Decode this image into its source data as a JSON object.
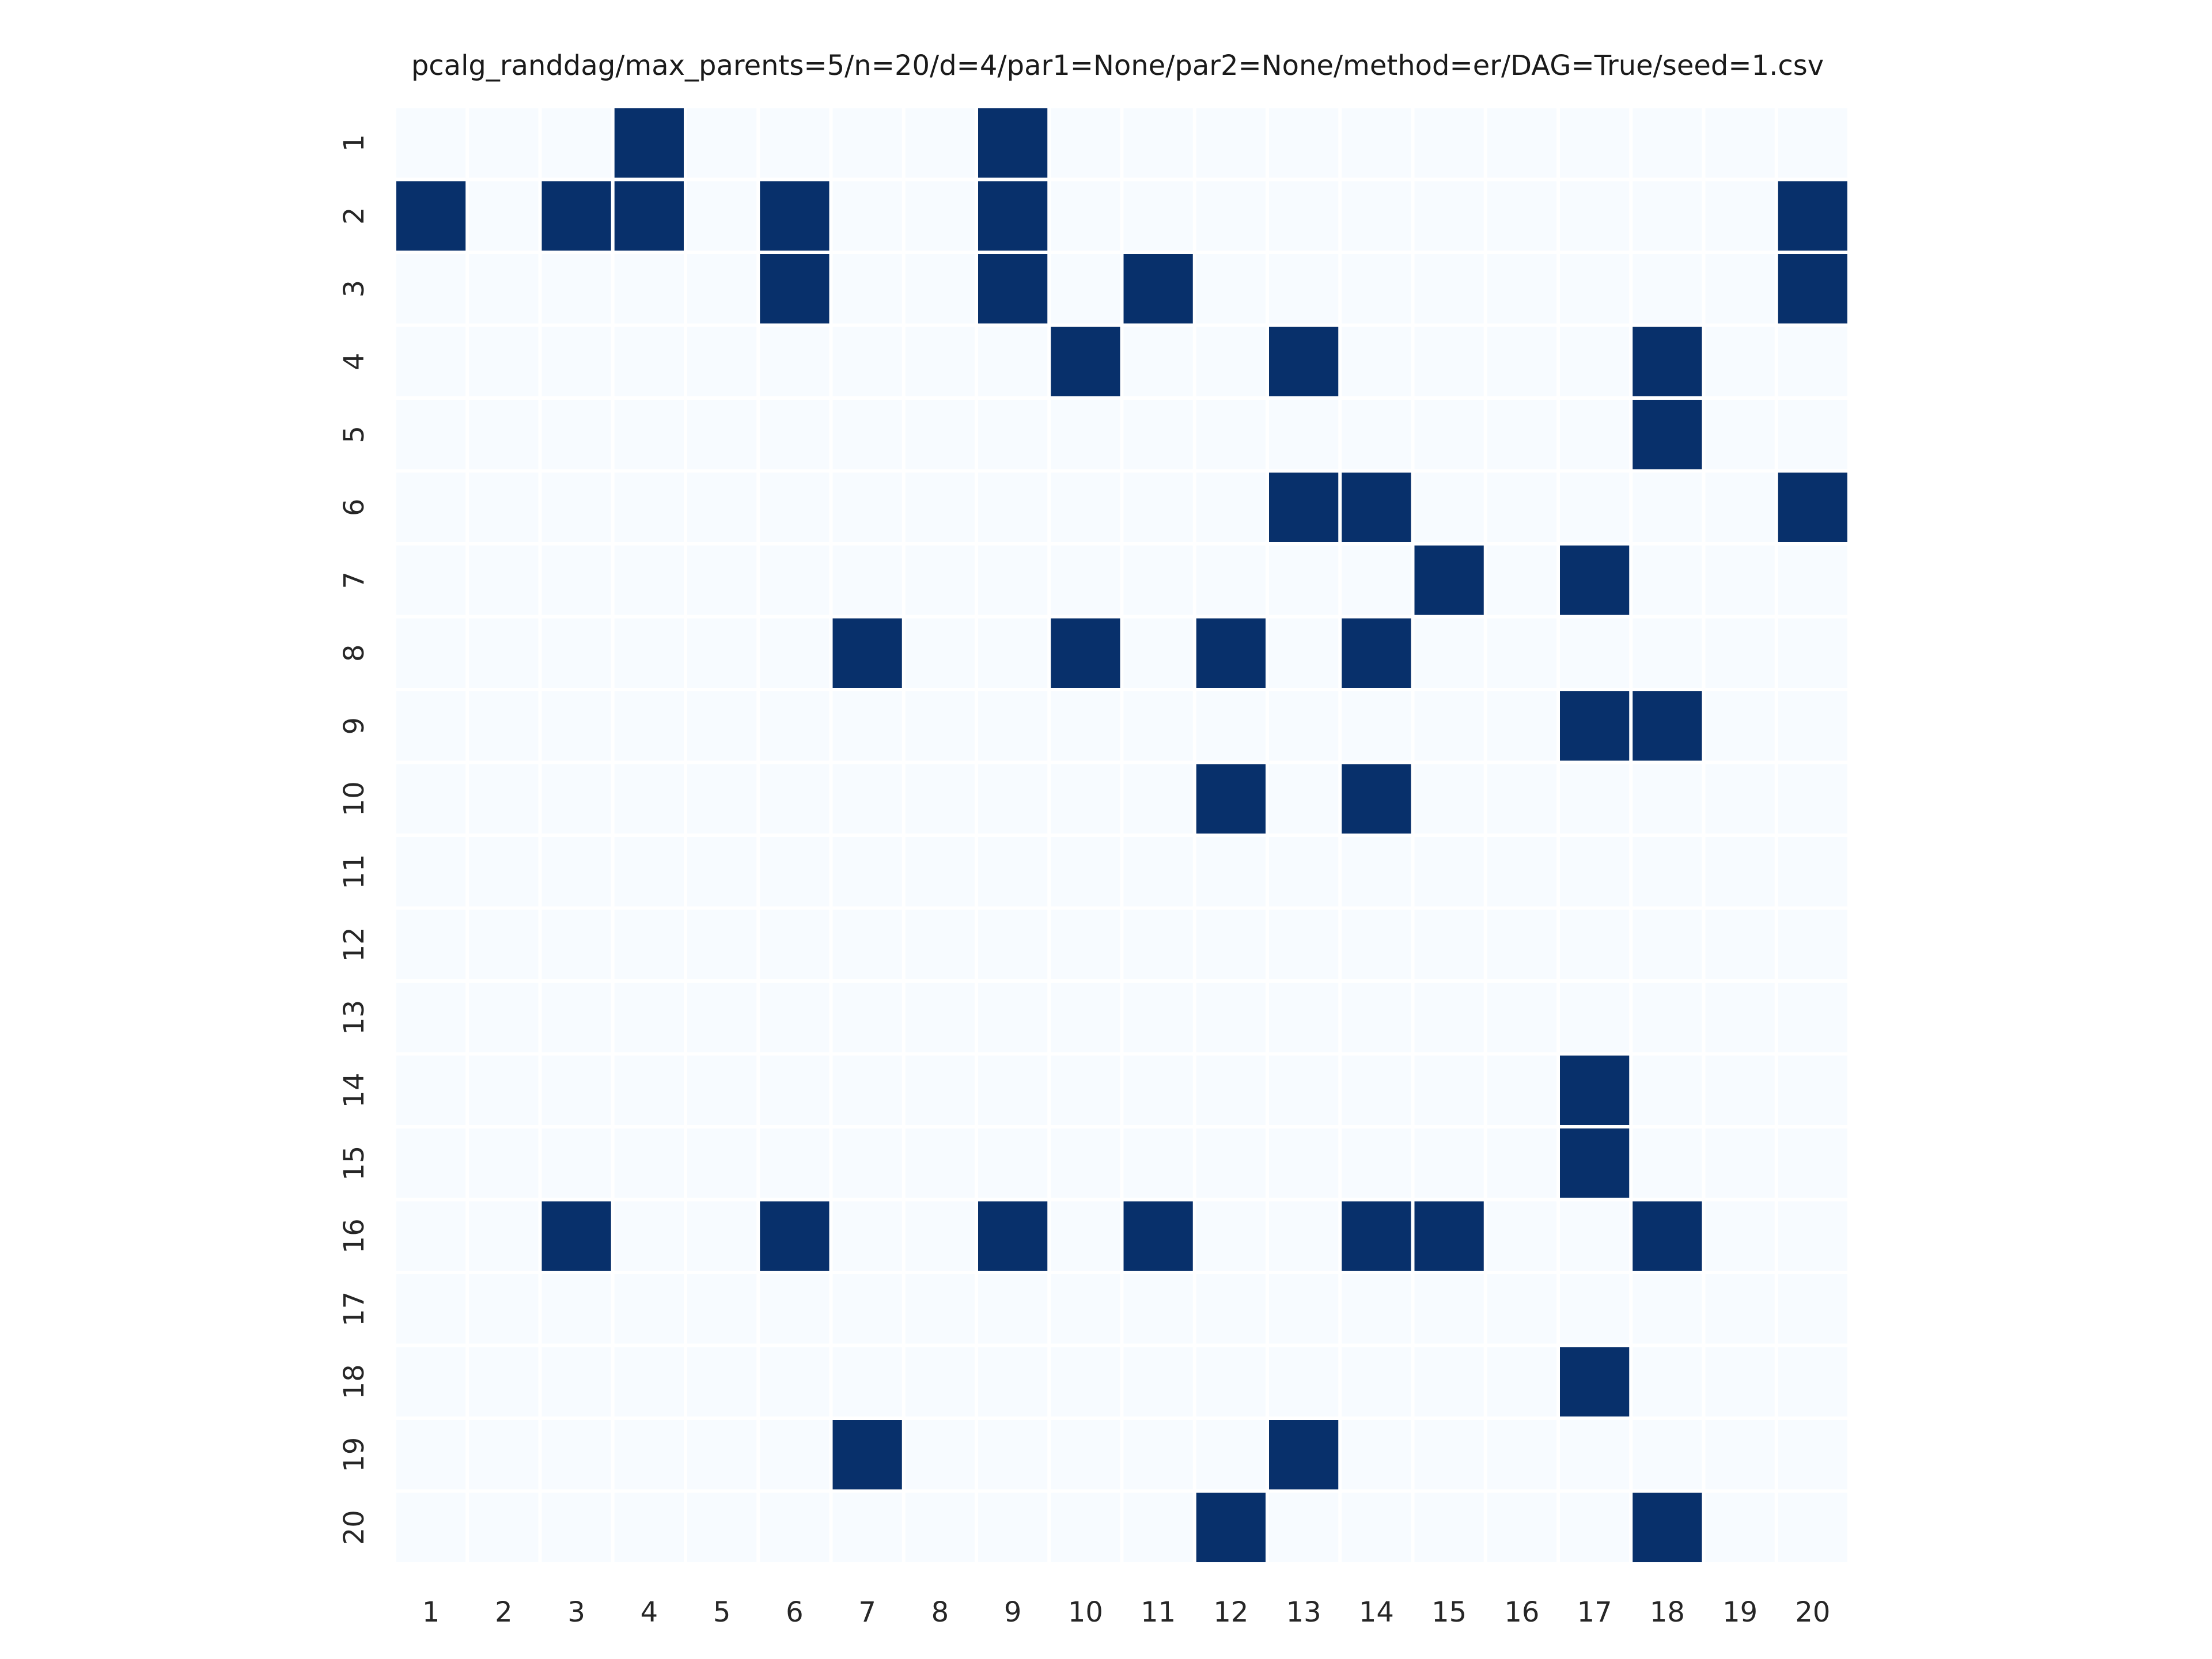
{
  "chart_data": {
    "type": "heatmap",
    "title": "pcalg_randdag/max_parents=5/n=20/d=4/par1=None/par2=None/method=er/DAG=True/seed=1.csv",
    "xlabel": "",
    "ylabel": "",
    "x_tick_labels": [
      "1",
      "2",
      "3",
      "4",
      "5",
      "6",
      "7",
      "8",
      "9",
      "10",
      "11",
      "12",
      "13",
      "14",
      "15",
      "16",
      "17",
      "18",
      "19",
      "20"
    ],
    "y_tick_labels": [
      "1",
      "2",
      "3",
      "4",
      "5",
      "6",
      "7",
      "8",
      "9",
      "10",
      "11",
      "12",
      "13",
      "14",
      "15",
      "16",
      "17",
      "18",
      "19",
      "20"
    ],
    "value_range": [
      0,
      1
    ],
    "colors": {
      "zero": "#f7fbff",
      "one": "#08306b",
      "grid": "#ffffff"
    },
    "grid": true,
    "colorbar": false,
    "matrix": [
      [
        0,
        0,
        0,
        1,
        0,
        0,
        0,
        0,
        1,
        0,
        0,
        0,
        0,
        0,
        0,
        0,
        0,
        0,
        0,
        0
      ],
      [
        1,
        0,
        1,
        1,
        0,
        1,
        0,
        0,
        1,
        0,
        0,
        0,
        0,
        0,
        0,
        0,
        0,
        0,
        0,
        1
      ],
      [
        0,
        0,
        0,
        0,
        0,
        1,
        0,
        0,
        1,
        0,
        1,
        0,
        0,
        0,
        0,
        0,
        0,
        0,
        0,
        1
      ],
      [
        0,
        0,
        0,
        0,
        0,
        0,
        0,
        0,
        0,
        1,
        0,
        0,
        1,
        0,
        0,
        0,
        0,
        1,
        0,
        0
      ],
      [
        0,
        0,
        0,
        0,
        0,
        0,
        0,
        0,
        0,
        0,
        0,
        0,
        0,
        0,
        0,
        0,
        0,
        1,
        0,
        0
      ],
      [
        0,
        0,
        0,
        0,
        0,
        0,
        0,
        0,
        0,
        0,
        0,
        0,
        1,
        1,
        0,
        0,
        0,
        0,
        0,
        1
      ],
      [
        0,
        0,
        0,
        0,
        0,
        0,
        0,
        0,
        0,
        0,
        0,
        0,
        0,
        0,
        1,
        0,
        1,
        0,
        0,
        0
      ],
      [
        0,
        0,
        0,
        0,
        0,
        0,
        1,
        0,
        0,
        1,
        0,
        1,
        0,
        1,
        0,
        0,
        0,
        0,
        0,
        0
      ],
      [
        0,
        0,
        0,
        0,
        0,
        0,
        0,
        0,
        0,
        0,
        0,
        0,
        0,
        0,
        0,
        0,
        1,
        1,
        0,
        0
      ],
      [
        0,
        0,
        0,
        0,
        0,
        0,
        0,
        0,
        0,
        0,
        0,
        1,
        0,
        1,
        0,
        0,
        0,
        0,
        0,
        0
      ],
      [
        0,
        0,
        0,
        0,
        0,
        0,
        0,
        0,
        0,
        0,
        0,
        0,
        0,
        0,
        0,
        0,
        0,
        0,
        0,
        0
      ],
      [
        0,
        0,
        0,
        0,
        0,
        0,
        0,
        0,
        0,
        0,
        0,
        0,
        0,
        0,
        0,
        0,
        0,
        0,
        0,
        0
      ],
      [
        0,
        0,
        0,
        0,
        0,
        0,
        0,
        0,
        0,
        0,
        0,
        0,
        0,
        0,
        0,
        0,
        0,
        0,
        0,
        0
      ],
      [
        0,
        0,
        0,
        0,
        0,
        0,
        0,
        0,
        0,
        0,
        0,
        0,
        0,
        0,
        0,
        0,
        1,
        0,
        0,
        0
      ],
      [
        0,
        0,
        0,
        0,
        0,
        0,
        0,
        0,
        0,
        0,
        0,
        0,
        0,
        0,
        0,
        0,
        1,
        0,
        0,
        0
      ],
      [
        0,
        0,
        1,
        0,
        0,
        1,
        0,
        0,
        1,
        0,
        1,
        0,
        0,
        1,
        1,
        0,
        0,
        1,
        0,
        0
      ],
      [
        0,
        0,
        0,
        0,
        0,
        0,
        0,
        0,
        0,
        0,
        0,
        0,
        0,
        0,
        0,
        0,
        0,
        0,
        0,
        0
      ],
      [
        0,
        0,
        0,
        0,
        0,
        0,
        0,
        0,
        0,
        0,
        0,
        0,
        0,
        0,
        0,
        0,
        1,
        0,
        0,
        0
      ],
      [
        0,
        0,
        0,
        0,
        0,
        0,
        1,
        0,
        0,
        0,
        0,
        0,
        1,
        0,
        0,
        0,
        0,
        0,
        0,
        0
      ],
      [
        0,
        0,
        0,
        0,
        0,
        0,
        0,
        0,
        0,
        0,
        0,
        1,
        0,
        0,
        0,
        0,
        0,
        1,
        0,
        0
      ]
    ]
  }
}
